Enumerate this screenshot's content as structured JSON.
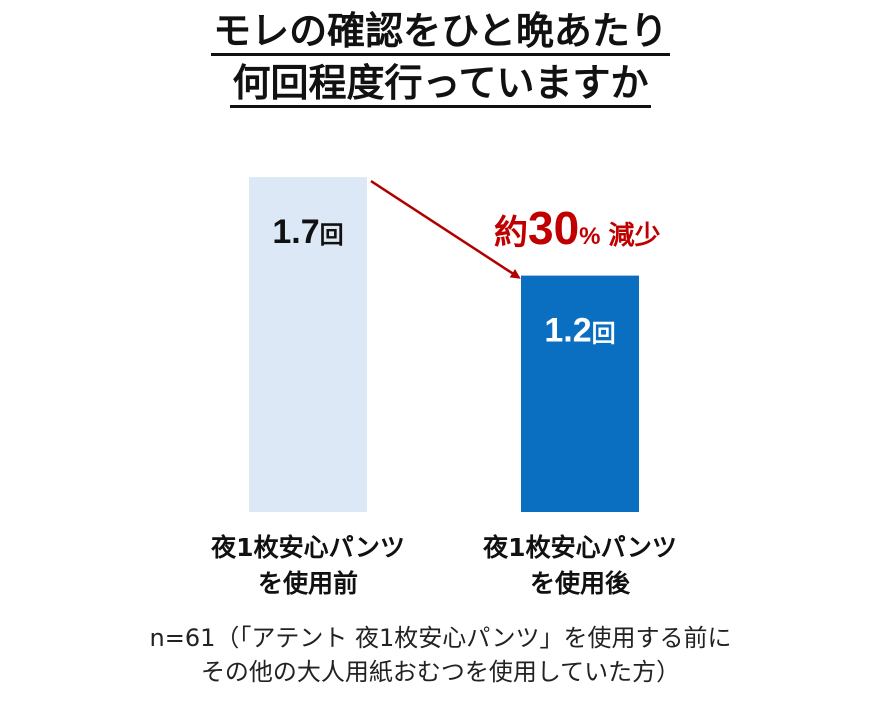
{
  "title": {
    "line1": "モレの確認をひと晩あたり",
    "line2": "何回程度行っていますか"
  },
  "chart_data": {
    "type": "bar",
    "categories": [
      [
        "夜1枚安心パンツ",
        "を使用前"
      ],
      [
        "夜1枚安心パンツ",
        "を使用後"
      ]
    ],
    "values": [
      1.7,
      1.2
    ],
    "value_labels": [
      "1.7",
      "1.2"
    ],
    "value_unit": "回",
    "ylim": [
      0,
      2.0
    ],
    "colors": [
      "#dce8f6",
      "#0b6fc1"
    ],
    "value_label_colors": [
      "#111111",
      "#ffffff"
    ],
    "annotation": {
      "prefix": "約",
      "number": "30",
      "percent": "%",
      "suffix": "減少",
      "color": "#c00000"
    },
    "grid": false
  },
  "note": {
    "line1": "n=61（「アテント 夜1枚安心パンツ」を使用する前に",
    "line2": "その他の大人用紙おむつを使用していた方）"
  }
}
